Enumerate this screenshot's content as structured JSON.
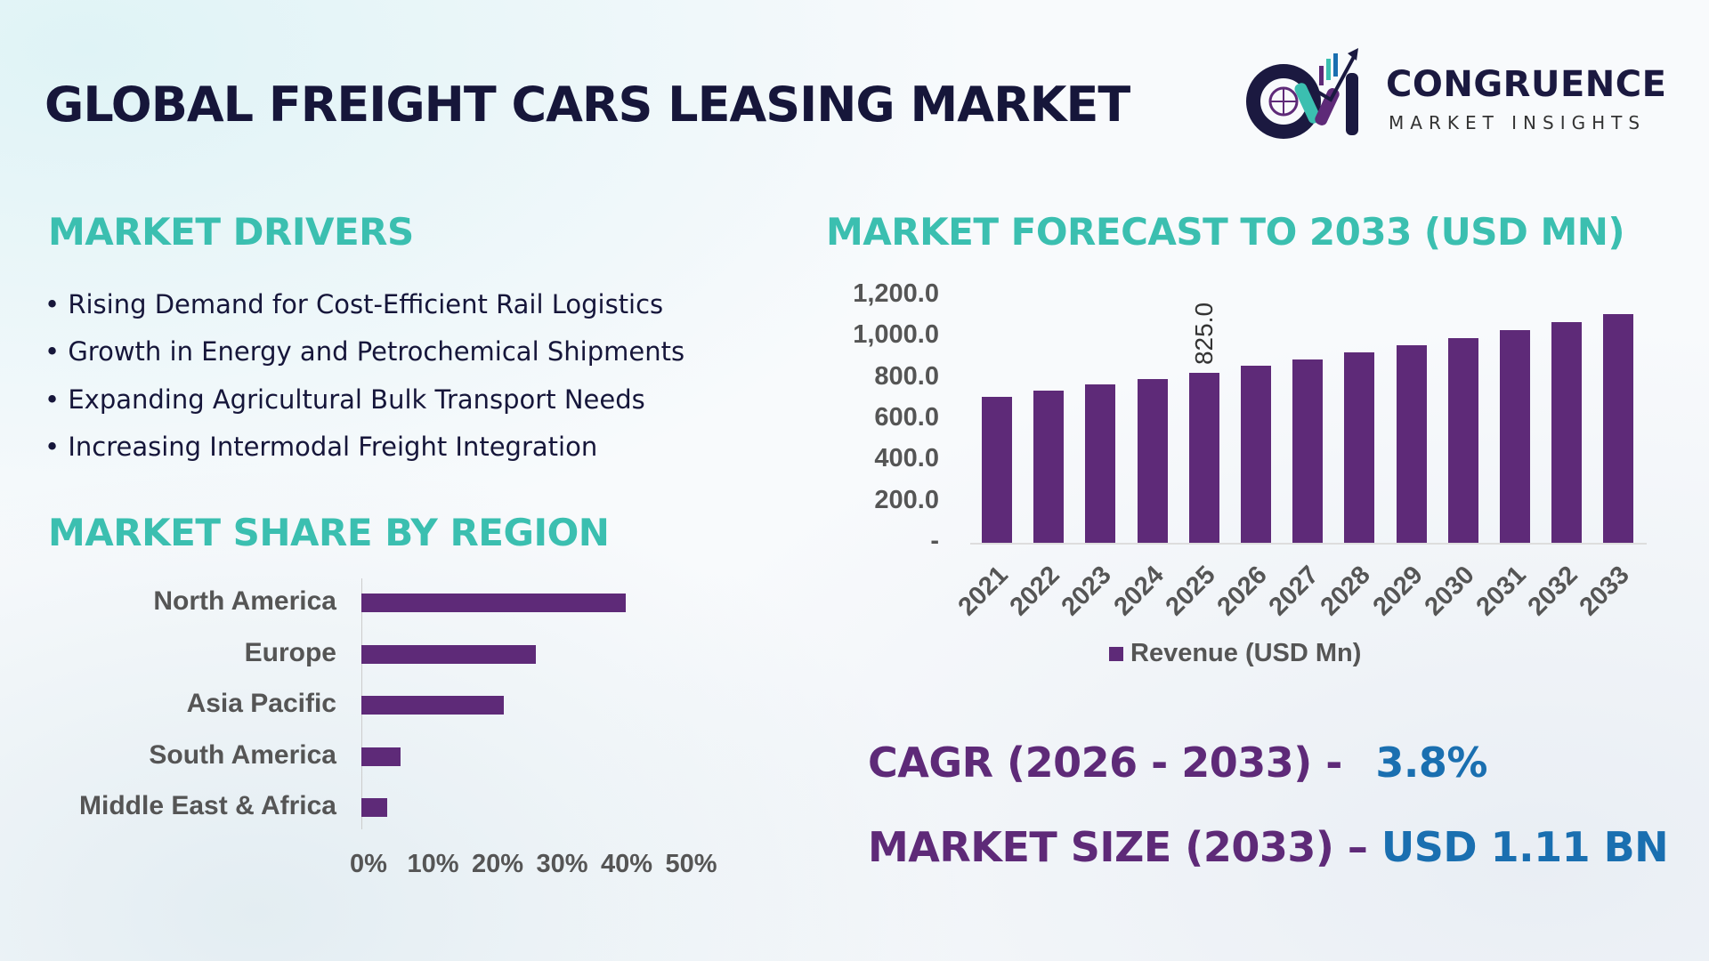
{
  "title": "GLOBAL FREIGHT CARS LEASING MARKET",
  "logo": {
    "name": "CONGRUENCE",
    "tagline": "MARKET INSIGHTS",
    "colors": [
      "#1b1940",
      "#3bbfb0",
      "#5e2a78",
      "#1a6fb0"
    ]
  },
  "drivers": {
    "heading": "MARKET DRIVERS",
    "items": [
      "Rising Demand for Cost-Efficient Rail Logistics",
      "Growth in Energy and Petrochemical Shipments",
      "Expanding Agricultural Bulk Transport Needs",
      "Increasing Intermodal Freight Integration"
    ]
  },
  "region": {
    "heading": "MARKET SHARE BY REGION"
  },
  "forecast": {
    "heading": "MARKET FORECAST TO 2033 (USD MN)"
  },
  "chart_data": [
    {
      "type": "bar",
      "orientation": "horizontal",
      "categories": [
        "North America",
        "Europe",
        "Asia Pacific",
        "South America",
        "Middle East & Africa"
      ],
      "values": [
        41,
        27,
        22,
        6,
        4
      ],
      "xlim": [
        0,
        50
      ],
      "tick_labels": [
        "0%",
        "10%",
        "20%",
        "30%",
        "40%",
        "50%"
      ],
      "color": "#5e2a78"
    },
    {
      "type": "bar",
      "categories": [
        "2021",
        "2022",
        "2023",
        "2024",
        "2025",
        "2026",
        "2027",
        "2028",
        "2029",
        "2030",
        "2031",
        "2032",
        "2033"
      ],
      "series": [
        {
          "name": "Revenue (USD Mn)",
          "values": [
            710,
            740,
            767,
            795,
            825,
            857,
            889,
            922,
            957,
            993,
            1031,
            1070,
            1110
          ]
        }
      ],
      "ylim": [
        0,
        1200
      ],
      "tick_labels": [
        "-",
        "200.0",
        "400.0",
        "600.0",
        "800.0",
        "1,000.0",
        "1,200.0"
      ],
      "data_labels": [
        {
          "category": "2025",
          "text": "825.0"
        }
      ],
      "legend": "bottom",
      "color": "#5e2a78"
    }
  ],
  "stats": {
    "cagr_label": "CAGR (2026 - 2033) -",
    "cagr_value": "3.8%",
    "size_label": "MARKET SIZE (2033) –",
    "size_value": "USD 1.11 BN",
    "label_color": "#5e2a78",
    "value_color": "#1a6fb0"
  }
}
